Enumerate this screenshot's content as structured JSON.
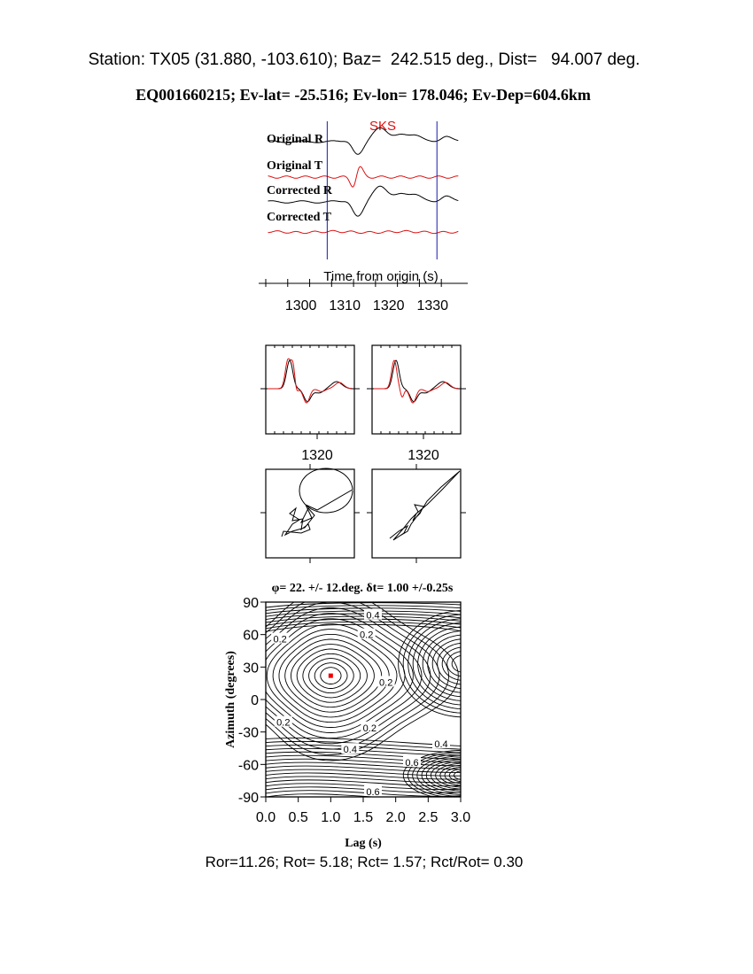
{
  "header": {
    "station_line": "Station: TX05 (31.880, -103.610); Baz=  242.515 deg., Dist=   94.007 deg.",
    "event_line": "EQ001660215; Ev-lat= -25.516; Ev-lon= 178.046; Ev-Dep=604.6km"
  },
  "footer": {
    "ratio_line": "Ror=11.26; Rot= 5.18; Rct= 1.57; Rct/Rot= 0.30"
  },
  "colors": {
    "radial": "#000000",
    "transverse": "#dd1111",
    "window": "#1a1aa8",
    "phase_label": "#dd1111",
    "best_fit": "#ee0000"
  },
  "chart_data": [
    {
      "type": "line",
      "panel": "seismograms",
      "phase_label": "SKS",
      "xlabel": "Time from origin (s)",
      "xlim": [
        1292,
        1336
      ],
      "xticks": [
        1300,
        1310,
        1320,
        1330
      ],
      "xtick_labels": [
        "1300",
        "1310",
        "1320",
        "1330"
      ],
      "analysis_window_s": [
        1306,
        1331
      ],
      "series": [
        {
          "name": "Original R",
          "component": "radial"
        },
        {
          "name": "Original T",
          "component": "transverse"
        },
        {
          "name": "Corrected R",
          "component": "radial"
        },
        {
          "name": "Corrected T",
          "component": "transverse"
        }
      ]
    },
    {
      "type": "line",
      "panel": "waveform-comparison",
      "panels": [
        "original",
        "corrected"
      ],
      "xticks": [
        1320
      ],
      "xtick_labels": [
        "1320"
      ]
    },
    {
      "type": "line",
      "panel": "particle-motion",
      "panels": [
        "original",
        "corrected"
      ]
    },
    {
      "type": "heatmap",
      "panel": "energy-grid",
      "title": "φ= 22. +/- 12.deg. δt= 1.00 +/-0.25s",
      "xlabel": "Lag (s)",
      "ylabel": "Azimuth (degrees)",
      "xlim": [
        0,
        3
      ],
      "ylim": [
        -90,
        90
      ],
      "xticks": [
        0.0,
        0.5,
        1.0,
        1.5,
        2.0,
        2.5,
        3.0
      ],
      "xtick_labels": [
        "0.0",
        "0.5",
        "1.0",
        "1.5",
        "2.0",
        "2.5",
        "3.0"
      ],
      "yticks": [
        90,
        60,
        30,
        0,
        -30,
        -60,
        -90
      ],
      "ytick_labels": [
        "90",
        "60",
        "30",
        "0",
        "-30",
        "-60",
        "-90"
      ],
      "best_fit": {
        "lag": 1.0,
        "azimuth": 22
      },
      "contour_labels": [
        {
          "text": "0.4",
          "lag": 1.65,
          "azimuth": 78
        },
        {
          "text": "0.2",
          "lag": 1.55,
          "azimuth": 60
        },
        {
          "text": "0.2",
          "lag": 0.22,
          "azimuth": 56
        },
        {
          "text": "0.2",
          "lag": 1.85,
          "azimuth": 16
        },
        {
          "text": "0.2",
          "lag": 0.27,
          "azimuth": -21
        },
        {
          "text": "0.2",
          "lag": 1.6,
          "azimuth": -26
        },
        {
          "text": "0.4",
          "lag": 2.7,
          "azimuth": -41
        },
        {
          "text": "0.4",
          "lag": 1.3,
          "azimuth": -46
        },
        {
          "text": "0.6",
          "lag": 2.25,
          "azimuth": -58
        },
        {
          "text": "0.6",
          "lag": 1.65,
          "azimuth": -85
        }
      ]
    }
  ]
}
